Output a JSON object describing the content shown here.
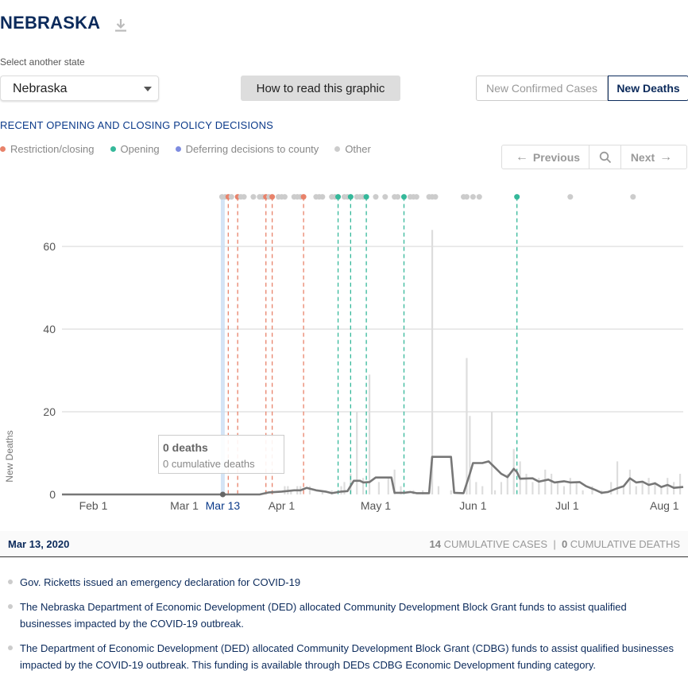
{
  "header": {
    "title": "NEBRASKA"
  },
  "selector": {
    "label": "Select another state",
    "value": "Nebraska"
  },
  "howto_label": "How to read this graphic",
  "toggle": {
    "cases_label": "New Confirmed Cases",
    "deaths_label": "New Deaths"
  },
  "policy_heading": "RECENT OPENING AND CLOSING POLICY DECISIONS",
  "legend": [
    {
      "label": "Restriction/closing",
      "color": "#e8826a"
    },
    {
      "label": "Opening",
      "color": "#35b89a"
    },
    {
      "label": "Deferring decisions to county",
      "color": "#7e8ce0"
    },
    {
      "label": "Other",
      "color": "#cccccc"
    }
  ],
  "pager": {
    "prev_label": "Previous",
    "next_label": "Next"
  },
  "tooltip": {
    "deaths": "0 deaths",
    "cumulative": "0 cumulative deaths"
  },
  "info": {
    "date": "Mar 13, 2020",
    "cases_num": "14",
    "cases_label": "CUMULATIVE CASES",
    "sep": "|",
    "deaths_num": "0",
    "deaths_label": "CUMULATIVE DEATHS"
  },
  "events": [
    "Gov. Ricketts issued an emergency declaration for COVID-19",
    "The Nebraska Department of Economic Development (DED) allocated Community Development Block Grant funds to assist qualified businesses impacted by the COVID-19 outbreak.",
    "The Department of Economic Development (DED) allocated Community Development Block Grant (CDBG) funds to assist qualified businesses impacted by the COVID-19 outbreak. This funding is available through DEDs CDBG Economic Development funding category."
  ],
  "chart_data": {
    "type": "bar",
    "ylabel": "New Deaths",
    "ylim": [
      0,
      72
    ],
    "y_ticks": [
      0,
      20,
      40,
      60
    ],
    "x_start": "2020-01-22",
    "x_end": "2020-08-07",
    "x_tick_labels": [
      {
        "date": "2020-02-01",
        "label": "Feb 1"
      },
      {
        "date": "2020-03-01",
        "label": "Mar 1"
      },
      {
        "date": "2020-04-01",
        "label": "Apr 1"
      },
      {
        "date": "2020-05-01",
        "label": "May 1"
      },
      {
        "date": "2020-06-01",
        "label": "Jun 1"
      },
      {
        "date": "2020-07-01",
        "label": "Jul 1"
      },
      {
        "date": "2020-08-01",
        "label": "Aug 1"
      }
    ],
    "selected_date": "2020-03-13",
    "selected_label": "Mar 13",
    "daily_deaths_bars": [
      {
        "date": "2020-03-27",
        "value": 1
      },
      {
        "date": "2020-03-29",
        "value": 1
      },
      {
        "date": "2020-04-02",
        "value": 2
      },
      {
        "date": "2020-04-03",
        "value": 2
      },
      {
        "date": "2020-04-04",
        "value": 1
      },
      {
        "date": "2020-04-06",
        "value": 2
      },
      {
        "date": "2020-04-07",
        "value": 2
      },
      {
        "date": "2020-04-10",
        "value": 2
      },
      {
        "date": "2020-04-14",
        "value": 1
      },
      {
        "date": "2020-04-17",
        "value": 1
      },
      {
        "date": "2020-04-20",
        "value": 2
      },
      {
        "date": "2020-04-21",
        "value": 3
      },
      {
        "date": "2020-04-23",
        "value": 5
      },
      {
        "date": "2020-04-25",
        "value": 20
      },
      {
        "date": "2020-04-27",
        "value": 4
      },
      {
        "date": "2020-04-29",
        "value": 29
      },
      {
        "date": "2020-05-02",
        "value": 3
      },
      {
        "date": "2020-05-05",
        "value": 4
      },
      {
        "date": "2020-05-07",
        "value": 6
      },
      {
        "date": "2020-05-09",
        "value": 2
      },
      {
        "date": "2020-05-13",
        "value": 1
      },
      {
        "date": "2020-05-16",
        "value": 1
      },
      {
        "date": "2020-05-19",
        "value": 64
      },
      {
        "date": "2020-05-21",
        "value": 2
      },
      {
        "date": "2020-05-25",
        "value": 1
      },
      {
        "date": "2020-05-30",
        "value": 33
      },
      {
        "date": "2020-05-31",
        "value": 19
      },
      {
        "date": "2020-06-02",
        "value": 3
      },
      {
        "date": "2020-06-04",
        "value": 2
      },
      {
        "date": "2020-06-07",
        "value": 20
      },
      {
        "date": "2020-06-08",
        "value": 1
      },
      {
        "date": "2020-06-10",
        "value": 3
      },
      {
        "date": "2020-06-12",
        "value": 5
      },
      {
        "date": "2020-06-14",
        "value": 11
      },
      {
        "date": "2020-06-16",
        "value": 8
      },
      {
        "date": "2020-06-18",
        "value": 5
      },
      {
        "date": "2020-06-20",
        "value": 3
      },
      {
        "date": "2020-06-22",
        "value": 4
      },
      {
        "date": "2020-06-24",
        "value": 6
      },
      {
        "date": "2020-06-26",
        "value": 5
      },
      {
        "date": "2020-06-28",
        "value": 3
      },
      {
        "date": "2020-06-30",
        "value": 2
      },
      {
        "date": "2020-07-02",
        "value": 4
      },
      {
        "date": "2020-07-04",
        "value": 3
      },
      {
        "date": "2020-07-06",
        "value": 1
      },
      {
        "date": "2020-07-09",
        "value": 2
      },
      {
        "date": "2020-07-12",
        "value": 1
      },
      {
        "date": "2020-07-15",
        "value": 3
      },
      {
        "date": "2020-07-17",
        "value": 8
      },
      {
        "date": "2020-07-19",
        "value": 2
      },
      {
        "date": "2020-07-21",
        "value": 6
      },
      {
        "date": "2020-07-23",
        "value": 2
      },
      {
        "date": "2020-07-25",
        "value": 3
      },
      {
        "date": "2020-07-27",
        "value": 4
      },
      {
        "date": "2020-07-29",
        "value": 3
      },
      {
        "date": "2020-07-31",
        "value": 2
      },
      {
        "date": "2020-08-02",
        "value": 4
      },
      {
        "date": "2020-08-04",
        "value": 3
      },
      {
        "date": "2020-08-06",
        "value": 5
      }
    ],
    "seven_day_average_line": [
      {
        "date": "2020-01-22",
        "value": 0
      },
      {
        "date": "2020-03-25",
        "value": 0
      },
      {
        "date": "2020-03-28",
        "value": 0.5
      },
      {
        "date": "2020-04-01",
        "value": 0.7
      },
      {
        "date": "2020-04-05",
        "value": 1.0
      },
      {
        "date": "2020-04-07",
        "value": 1.0
      },
      {
        "date": "2020-04-09",
        "value": 1.6
      },
      {
        "date": "2020-04-12",
        "value": 1.0
      },
      {
        "date": "2020-04-15",
        "value": 0.7
      },
      {
        "date": "2020-04-17",
        "value": 0.3
      },
      {
        "date": "2020-04-20",
        "value": 0.7
      },
      {
        "date": "2020-04-22",
        "value": 0.8
      },
      {
        "date": "2020-04-24",
        "value": 3.3
      },
      {
        "date": "2020-04-26",
        "value": 3.3
      },
      {
        "date": "2020-04-27",
        "value": 2.9
      },
      {
        "date": "2020-04-29",
        "value": 3.0
      },
      {
        "date": "2020-05-01",
        "value": 4.1
      },
      {
        "date": "2020-05-06",
        "value": 4.1
      },
      {
        "date": "2020-05-07",
        "value": 0.4
      },
      {
        "date": "2020-05-10",
        "value": 0.4
      },
      {
        "date": "2020-05-12",
        "value": 0.6
      },
      {
        "date": "2020-05-14",
        "value": 0.3
      },
      {
        "date": "2020-05-18",
        "value": 0.3
      },
      {
        "date": "2020-05-19",
        "value": 9.1
      },
      {
        "date": "2020-05-25",
        "value": 9.1
      },
      {
        "date": "2020-05-26",
        "value": 0.4
      },
      {
        "date": "2020-05-29",
        "value": 0.3
      },
      {
        "date": "2020-05-31",
        "value": 5.0
      },
      {
        "date": "2020-06-01",
        "value": 7.6
      },
      {
        "date": "2020-06-04",
        "value": 7.6
      },
      {
        "date": "2020-06-06",
        "value": 8.0
      },
      {
        "date": "2020-06-08",
        "value": 6.5
      },
      {
        "date": "2020-06-10",
        "value": 5.0
      },
      {
        "date": "2020-06-12",
        "value": 4.2
      },
      {
        "date": "2020-06-14",
        "value": 6.2
      },
      {
        "date": "2020-06-15",
        "value": 5.4
      },
      {
        "date": "2020-06-16",
        "value": 3.8
      },
      {
        "date": "2020-06-20",
        "value": 3.9
      },
      {
        "date": "2020-06-22",
        "value": 3.1
      },
      {
        "date": "2020-06-25",
        "value": 3.6
      },
      {
        "date": "2020-06-27",
        "value": 2.9
      },
      {
        "date": "2020-06-30",
        "value": 3.2
      },
      {
        "date": "2020-07-02",
        "value": 2.9
      },
      {
        "date": "2020-07-05",
        "value": 3.0
      },
      {
        "date": "2020-07-07",
        "value": 2.0
      },
      {
        "date": "2020-07-10",
        "value": 1.1
      },
      {
        "date": "2020-07-12",
        "value": 0.4
      },
      {
        "date": "2020-07-14",
        "value": 0.6
      },
      {
        "date": "2020-07-17",
        "value": 1.5
      },
      {
        "date": "2020-07-19",
        "value": 2.0
      },
      {
        "date": "2020-07-21",
        "value": 3.9
      },
      {
        "date": "2020-07-23",
        "value": 2.9
      },
      {
        "date": "2020-07-25",
        "value": 3.1
      },
      {
        "date": "2020-07-27",
        "value": 2.3
      },
      {
        "date": "2020-07-29",
        "value": 2.7
      },
      {
        "date": "2020-07-31",
        "value": 1.8
      },
      {
        "date": "2020-08-02",
        "value": 2.3
      },
      {
        "date": "2020-08-04",
        "value": 1.6
      },
      {
        "date": "2020-08-07",
        "value": 1.8
      }
    ],
    "policy_markers": [
      {
        "date": "2020-03-13",
        "kind": "other"
      },
      {
        "date": "2020-03-14",
        "kind": "other"
      },
      {
        "date": "2020-03-15",
        "kind": "closing"
      },
      {
        "date": "2020-03-16",
        "kind": "other"
      },
      {
        "date": "2020-03-18",
        "kind": "closing"
      },
      {
        "date": "2020-03-19",
        "kind": "other"
      },
      {
        "date": "2020-03-20",
        "kind": "other"
      },
      {
        "date": "2020-03-23",
        "kind": "other"
      },
      {
        "date": "2020-03-25",
        "kind": "other"
      },
      {
        "date": "2020-03-26",
        "kind": "other"
      },
      {
        "date": "2020-03-27",
        "kind": "closing"
      },
      {
        "date": "2020-03-28",
        "kind": "other"
      },
      {
        "date": "2020-03-29",
        "kind": "closing"
      },
      {
        "date": "2020-03-31",
        "kind": "other"
      },
      {
        "date": "2020-04-01",
        "kind": "other"
      },
      {
        "date": "2020-04-02",
        "kind": "other"
      },
      {
        "date": "2020-04-05",
        "kind": "other"
      },
      {
        "date": "2020-04-06",
        "kind": "other"
      },
      {
        "date": "2020-04-07",
        "kind": "other"
      },
      {
        "date": "2020-04-08",
        "kind": "closing"
      },
      {
        "date": "2020-04-12",
        "kind": "other"
      },
      {
        "date": "2020-04-13",
        "kind": "other"
      },
      {
        "date": "2020-04-14",
        "kind": "other"
      },
      {
        "date": "2020-04-17",
        "kind": "other"
      },
      {
        "date": "2020-04-18",
        "kind": "other"
      },
      {
        "date": "2020-04-19",
        "kind": "opening"
      },
      {
        "date": "2020-04-21",
        "kind": "other"
      },
      {
        "date": "2020-04-22",
        "kind": "other"
      },
      {
        "date": "2020-04-23",
        "kind": "opening"
      },
      {
        "date": "2020-04-25",
        "kind": "other"
      },
      {
        "date": "2020-04-26",
        "kind": "other"
      },
      {
        "date": "2020-04-27",
        "kind": "other"
      },
      {
        "date": "2020-04-28",
        "kind": "opening"
      },
      {
        "date": "2020-05-01",
        "kind": "other"
      },
      {
        "date": "2020-05-04",
        "kind": "other"
      },
      {
        "date": "2020-05-07",
        "kind": "other"
      },
      {
        "date": "2020-05-08",
        "kind": "other"
      },
      {
        "date": "2020-05-10",
        "kind": "opening"
      },
      {
        "date": "2020-05-12",
        "kind": "other"
      },
      {
        "date": "2020-05-13",
        "kind": "other"
      },
      {
        "date": "2020-05-14",
        "kind": "other"
      },
      {
        "date": "2020-05-18",
        "kind": "other"
      },
      {
        "date": "2020-05-19",
        "kind": "other"
      },
      {
        "date": "2020-05-20",
        "kind": "other"
      },
      {
        "date": "2020-05-29",
        "kind": "other"
      },
      {
        "date": "2020-05-30",
        "kind": "other"
      },
      {
        "date": "2020-06-01",
        "kind": "other"
      },
      {
        "date": "2020-06-03",
        "kind": "other"
      },
      {
        "date": "2020-06-15",
        "kind": "opening"
      },
      {
        "date": "2020-07-02",
        "kind": "other"
      },
      {
        "date": "2020-07-22",
        "kind": "other"
      }
    ]
  }
}
